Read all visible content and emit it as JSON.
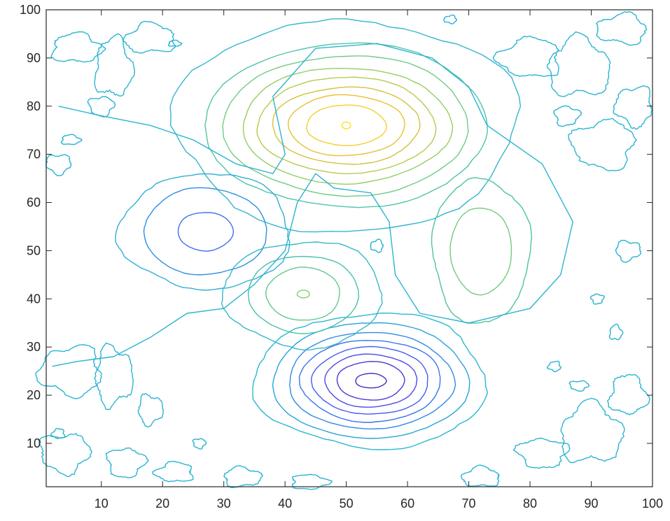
{
  "chart_data": {
    "type": "contour",
    "title": "",
    "xlabel": "",
    "ylabel": "",
    "xlim": [
      1,
      100
    ],
    "ylim": [
      1,
      100
    ],
    "grid": false,
    "legend": "none",
    "x_ticks": [
      10,
      20,
      30,
      40,
      50,
      60,
      70,
      80,
      90,
      100
    ],
    "y_ticks": [
      10,
      20,
      30,
      40,
      50,
      60,
      70,
      80,
      90,
      100
    ],
    "x_tick_labels": [
      "10",
      "20",
      "30",
      "40",
      "50",
      "60",
      "70",
      "80",
      "90",
      "100"
    ],
    "y_tick_labels": [
      "10",
      "20",
      "30",
      "40",
      "50",
      "60",
      "70",
      "80",
      "90",
      "100"
    ],
    "colormap": "parula",
    "features": [
      {
        "kind": "peak",
        "center": [
          50,
          76
        ],
        "levels": [
          {
            "rx": 28,
            "ry": 22,
            "color": "#36b5cc"
          },
          {
            "rx": 23,
            "ry": 17,
            "color": "#4fc4a8"
          },
          {
            "rx": 20,
            "ry": 14.5,
            "color": "#6fcc83"
          },
          {
            "rx": 17,
            "ry": 12,
            "color": "#93ce63"
          },
          {
            "rx": 14.5,
            "ry": 10,
            "color": "#b6ca4c"
          },
          {
            "rx": 12,
            "ry": 8,
            "color": "#d4c23c"
          },
          {
            "rx": 9.5,
            "ry": 6.3,
            "color": "#e9c033"
          },
          {
            "rx": 6.5,
            "ry": 4.2,
            "color": "#f5cf2a"
          },
          {
            "rx": 0.7,
            "ry": 0.7,
            "color": "#f9e024"
          }
        ]
      },
      {
        "kind": "valley",
        "center": [
          54,
          23
        ],
        "levels": [
          {
            "rx": 19,
            "ry": 14,
            "color": "#2ab7cf"
          },
          {
            "rx": 16,
            "ry": 12,
            "color": "#27a2da"
          },
          {
            "rx": 13.5,
            "ry": 10,
            "color": "#2d8be5"
          },
          {
            "rx": 11.5,
            "ry": 8.5,
            "color": "#3a73ed"
          },
          {
            "rx": 9.5,
            "ry": 7,
            "color": "#465cf2"
          },
          {
            "rx": 7.5,
            "ry": 5.5,
            "color": "#4d48ea"
          },
          {
            "rx": 5.5,
            "ry": 4,
            "color": "#4a3ad6"
          },
          {
            "rx": 2.5,
            "ry": 1.5,
            "color": "#3f2fc0"
          }
        ]
      },
      {
        "kind": "valley",
        "center": [
          27,
          54
        ],
        "levels": [
          {
            "rx": 14,
            "ry": 12,
            "color": "#2fb0d4"
          },
          {
            "rx": 10,
            "ry": 9,
            "color": "#2c8fe2"
          },
          {
            "rx": 4.5,
            "ry": 4,
            "color": "#3f6ff0"
          }
        ]
      },
      {
        "kind": "peak",
        "center": [
          43,
          41
        ],
        "levels": [
          {
            "rx": 13,
            "ry": 11,
            "color": "#36b8c9"
          },
          {
            "rx": 9,
            "ry": 8,
            "color": "#45c1ac"
          },
          {
            "rx": 6,
            "ry": 5.5,
            "color": "#63c890"
          },
          {
            "rx": 1,
            "ry": 0.8,
            "color": "#86cc70"
          }
        ]
      },
      {
        "kind": "peak",
        "center": [
          72,
          50
        ],
        "levels": [
          {
            "rx": 8,
            "ry": 15,
            "color": "#4cc3a2"
          },
          {
            "rx": 5,
            "ry": 9,
            "color": "#72cb7f"
          }
        ]
      }
    ],
    "background_level_color": "#2bb4d2"
  }
}
